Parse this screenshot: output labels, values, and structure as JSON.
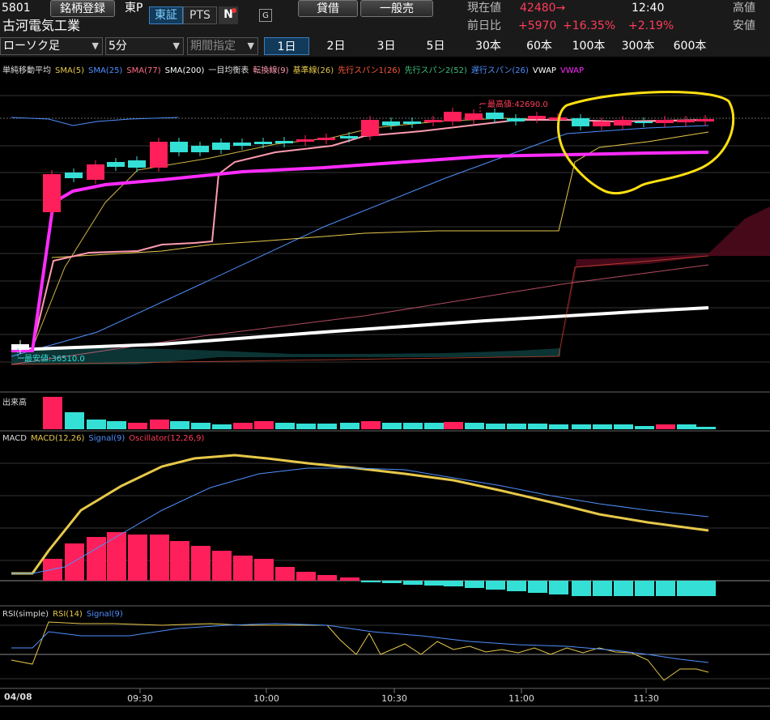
{
  "header": {
    "code": "5801",
    "watch_button": "銘柄登録",
    "market_short": "東P",
    "exchange_tabs": [
      "東証",
      "PTS"
    ],
    "n_logo": "N",
    "g_icon": "G",
    "buttons": [
      "貸借",
      "一般売"
    ],
    "company_name": "古河電気工業",
    "current_price_label": "現在値",
    "current_price": "42480→",
    "time": "12:40",
    "high_label": "高値",
    "change_label": "前日比",
    "change": "+5970",
    "change_pct": "+16.35%",
    "change_pct2": "+2.19%",
    "low_label": "安値"
  },
  "toolbar": {
    "chart_type": "ローソク足",
    "interval": "5分",
    "period": "期間指定",
    "timeframes": [
      "1日",
      "2日",
      "3日",
      "5日",
      "30本",
      "60本",
      "100本",
      "300本",
      "600本"
    ],
    "active_timeframe": "1日"
  },
  "main_legend": [
    {
      "text": "単純移動平均",
      "color": "#dddddd"
    },
    {
      "text": "SMA(5)",
      "color": "#e6c84a"
    },
    {
      "text": "SMA(25)",
      "color": "#4f8fff"
    },
    {
      "text": "SMA(77)",
      "color": "#ff6e8a"
    },
    {
      "text": "SMA(200)",
      "color": "#ffffff"
    },
    {
      "text": "一目均衡表",
      "color": "#dddddd"
    },
    {
      "text": "転換線(9)",
      "color": "#ff9bb0"
    },
    {
      "text": "基準線(26)",
      "color": "#e6c84a"
    },
    {
      "text": "先行スパン1(26)",
      "color": "#ff5a3c"
    },
    {
      "text": "先行スパン2(52)",
      "color": "#3cbf7a"
    },
    {
      "text": "遅行スパン(26)",
      "color": "#4f8fff"
    },
    {
      "text": "VWAP",
      "color": "#ffffff"
    },
    {
      "text": "VWAP",
      "color": "#ff2cff"
    }
  ],
  "annotations": {
    "high": "最高値:42690.0",
    "low": "最安値:36510.0"
  },
  "volume": {
    "title": "出来高"
  },
  "macd_legend": [
    {
      "text": "MACD",
      "color": "#dddddd"
    },
    {
      "text": "MACD(12,26)",
      "color": "#e6c84a"
    },
    {
      "text": "Signal(9)",
      "color": "#4f8fff"
    },
    {
      "text": "Oscillator(12,26,9)",
      "color": "#ff3c5a"
    }
  ],
  "rsi_legend": [
    {
      "text": "RSI(simple)",
      "color": "#dddddd"
    },
    {
      "text": "RSI(14)",
      "color": "#e6c84a"
    },
    {
      "text": "Signal(9)",
      "color": "#4f8fff"
    }
  ],
  "xaxis": {
    "date": "04/08",
    "ticks": [
      "09:30",
      "10:00",
      "10:30",
      "11:00",
      "11:30"
    ]
  },
  "colors": {
    "up": "#34e0d6",
    "down": "#ff1f5a",
    "vwap": "#ff2cff",
    "highlight": "#ffe012"
  }
}
